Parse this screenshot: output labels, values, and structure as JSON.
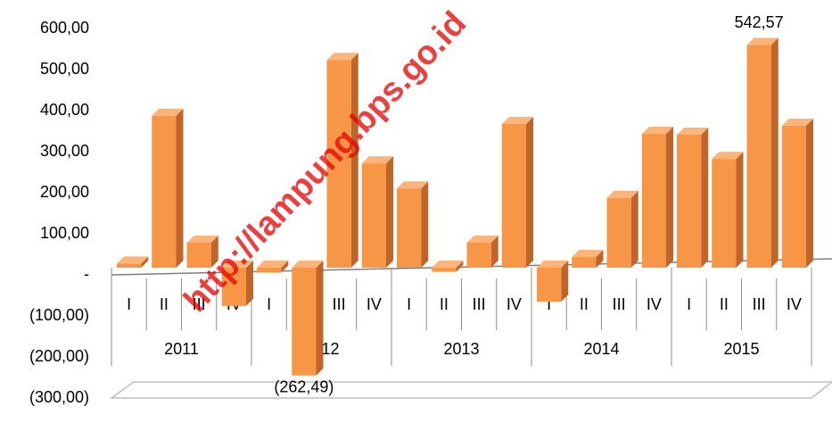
{
  "chart_data": {
    "type": "bar3d",
    "categories": [
      "I",
      "II",
      "III",
      "IV",
      "I",
      "II",
      "III",
      "IV",
      "I",
      "II",
      "III",
      "IV",
      "I",
      "II",
      "III",
      "IV",
      "I",
      "II",
      "III",
      "IV"
    ],
    "groups": [
      "2011",
      "2012",
      "2013",
      "2014",
      "2015"
    ],
    "values": [
      10,
      370,
      61,
      -93,
      -12,
      -262.49,
      506,
      254,
      193,
      -10,
      61,
      350,
      -83,
      26,
      170,
      326,
      324,
      265,
      542.57,
      346
    ],
    "value_labels": [
      null,
      null,
      null,
      null,
      null,
      "(262,49)",
      null,
      null,
      null,
      null,
      null,
      null,
      null,
      null,
      null,
      null,
      null,
      null,
      "542,57",
      null
    ],
    "color": "#f79646",
    "ylim": [
      -300,
      600
    ],
    "yticks": [
      {
        "value": -300,
        "label": "(300,00)"
      },
      {
        "value": -200,
        "label": "(200,00)"
      },
      {
        "value": -100,
        "label": "(100,00)"
      },
      {
        "value": 0,
        "label": "-"
      },
      {
        "value": 100,
        "label": "100,00"
      },
      {
        "value": 200,
        "label": "200,00"
      },
      {
        "value": 300,
        "label": "300,00"
      },
      {
        "value": 400,
        "label": "400,00"
      },
      {
        "value": 500,
        "label": "500,00"
      },
      {
        "value": 600,
        "label": "600,00"
      }
    ],
    "watermark": "http://lampung.bps.go.id"
  }
}
